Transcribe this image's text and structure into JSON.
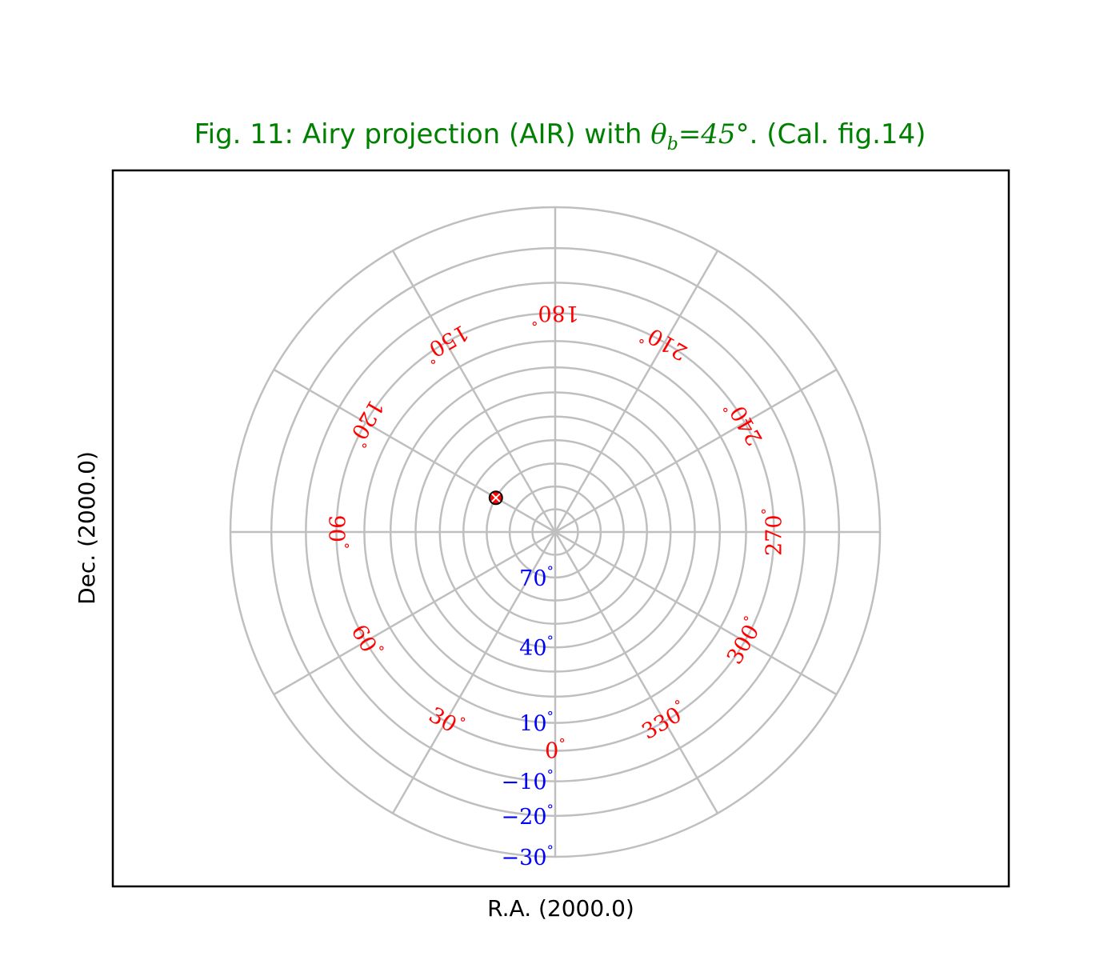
{
  "chart_data": {
    "type": "scatter",
    "title": "Fig. 11: Airy projection (AIR) with ",
    "title_math": "θ_b = 45°",
    "title_math_display": {
      "theta": "θ",
      "sub": "b",
      "rest": "=45°"
    },
    "title_suffix": ". (Cal. fig.14)",
    "xlabel": "R.A. (2000.0)",
    "ylabel": "Dec. (2000.0)",
    "projection": "AIR",
    "grid": true,
    "colors": {
      "title": "#008000",
      "longitude_labels": "#ff0000",
      "latitude_labels": "#0000ff",
      "graticule": "#bfbfbf",
      "marker": "#ff0000"
    },
    "meridians_deg": [
      0,
      30,
      60,
      90,
      120,
      150,
      180,
      210,
      240,
      270,
      300,
      330
    ],
    "parallels_deg": [
      80,
      70,
      60,
      50,
      40,
      30,
      20,
      10,
      0,
      -10,
      -20,
      -30
    ],
    "longitude_labels": [
      {
        "lon": 0,
        "text": "0",
        "unit": "°"
      },
      {
        "lon": 30,
        "text": "30",
        "unit": "°"
      },
      {
        "lon": 60,
        "text": "60",
        "unit": "°"
      },
      {
        "lon": 90,
        "text": "90",
        "unit": "°"
      },
      {
        "lon": 120,
        "text": "120",
        "unit": "°"
      },
      {
        "lon": 150,
        "text": "150",
        "unit": "°"
      },
      {
        "lon": 180,
        "text": "180",
        "unit": "°"
      },
      {
        "lon": 210,
        "text": "210",
        "unit": "°"
      },
      {
        "lon": 240,
        "text": "240",
        "unit": "°"
      },
      {
        "lon": 270,
        "text": "270",
        "unit": "°"
      },
      {
        "lon": 300,
        "text": "300",
        "unit": "°"
      },
      {
        "lon": 330,
        "text": "330",
        "unit": "°"
      }
    ],
    "latitude_labels": [
      {
        "lat": 70,
        "text": "70",
        "unit": "°"
      },
      {
        "lat": 40,
        "text": "40",
        "unit": "°"
      },
      {
        "lat": 10,
        "text": "10",
        "unit": "°"
      },
      {
        "lat": -10,
        "text": "−10",
        "unit": "°"
      },
      {
        "lat": -20,
        "text": "−20",
        "unit": "°"
      },
      {
        "lat": -30,
        "text": "−30",
        "unit": "°"
      }
    ],
    "markers": [
      {
        "lon": 120,
        "lat": 60
      }
    ]
  }
}
